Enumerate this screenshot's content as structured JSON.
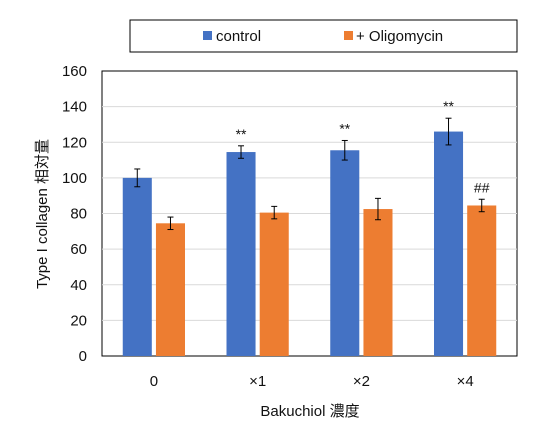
{
  "chart_data": {
    "type": "bar",
    "title": "",
    "xlabel": "Bakuchiol 濃度",
    "ylabel": "Type I collagen 相対量",
    "categories": [
      "0",
      "×1",
      "×2",
      "×4"
    ],
    "ylim": [
      0,
      160
    ],
    "yticks": [
      0,
      20,
      40,
      60,
      80,
      100,
      120,
      140,
      160
    ],
    "grid": true,
    "legend_position": "top",
    "series": [
      {
        "name": "control",
        "color": "#4472C4",
        "values": [
          100,
          114.5,
          115.5,
          126
        ],
        "errors": [
          5,
          3.5,
          5.5,
          7.5
        ],
        "annotations": [
          "",
          "**",
          "**",
          "**"
        ]
      },
      {
        "name": "+ Oligomycin",
        "color": "#ED7D31",
        "values": [
          74.5,
          80.5,
          82.5,
          84.5
        ],
        "errors": [
          3.5,
          3.5,
          6,
          3.5
        ],
        "annotations": [
          "",
          "",
          "",
          "##"
        ]
      }
    ]
  }
}
